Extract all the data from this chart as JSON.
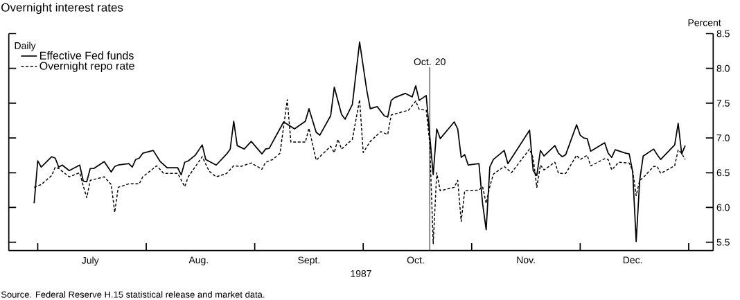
{
  "chart_data": {
    "type": "line",
    "title": "Overnight interest rates",
    "xlabel": "1987",
    "ylabel": "Percent",
    "legend_title": "Daily",
    "legend": "top left",
    "xlim": [
      "1987-06-23",
      "1988-01-08"
    ],
    "ylim": [
      5.38,
      8.5
    ],
    "xticks": [
      {
        "value": "1987-07-01",
        "label": null
      },
      {
        "value": "1987-07-16",
        "label": "July"
      },
      {
        "value": "1987-08-01",
        "label": null
      },
      {
        "value": "1987-08-16",
        "label": "Aug."
      },
      {
        "value": "1987-09-01",
        "label": null
      },
      {
        "value": "1987-09-16",
        "label": "Sept."
      },
      {
        "value": "1987-10-01",
        "label": null
      },
      {
        "value": "1987-10-16",
        "label": "Oct."
      },
      {
        "value": "1987-11-01",
        "label": null
      },
      {
        "value": "1987-11-16",
        "label": "Nov."
      },
      {
        "value": "1987-12-01",
        "label": null
      },
      {
        "value": "1987-12-16",
        "label": "Dec."
      },
      {
        "value": "1988-01-01",
        "label": null
      }
    ],
    "yticks": [
      {
        "value": 5.5,
        "label": "5.5"
      },
      {
        "value": 6,
        "label": "6.0"
      },
      {
        "value": 6.5,
        "label": "6.5"
      },
      {
        "value": 7,
        "label": "7.0"
      },
      {
        "value": 7.5,
        "label": "7.5"
      },
      {
        "value": 8,
        "label": "8.0"
      },
      {
        "value": 8.5,
        "label": "8.5"
      }
    ],
    "ref_lines": [
      {
        "axis": "x",
        "value": "1987-10-20",
        "label": "Oct. 20",
        "color": "#000000"
      }
    ],
    "annotations": [
      "Source. Federal Reserve H.15 statistical release and market data."
    ],
    "series": [
      {
        "name": "Effective Fed funds",
        "color": "#000000",
        "line_style": "solid",
        "x": [
          "1987-06-30",
          "1987-07-01",
          "1987-07-02",
          "1987-07-05",
          "1987-07-06",
          "1987-07-07",
          "1987-07-08",
          "1987-07-10",
          "1987-07-13",
          "1987-07-14",
          "1987-07-15",
          "1987-07-16",
          "1987-07-17",
          "1987-07-20",
          "1987-07-22",
          "1987-07-23",
          "1987-07-24",
          "1987-07-27",
          "1987-07-28",
          "1987-07-29",
          "1987-07-30",
          "1987-07-31",
          "1987-08-03",
          "1987-08-05",
          "1987-08-07",
          "1987-08-10",
          "1987-08-11",
          "1987-08-12",
          "1987-08-13",
          "1987-08-15",
          "1987-08-17",
          "1987-08-18",
          "1987-08-21",
          "1987-08-24",
          "1987-08-25",
          "1987-08-26",
          "1987-08-27",
          "1987-08-29",
          "1987-08-31",
          "1987-09-03",
          "1987-09-04",
          "1987-09-05",
          "1987-09-09",
          "1987-09-12",
          "1987-09-15",
          "1987-09-16",
          "1987-09-18",
          "1987-09-19",
          "1987-09-22",
          "1987-09-23",
          "1987-09-25",
          "1987-09-26",
          "1987-09-28",
          "1987-09-30",
          "1987-10-02",
          "1987-10-03",
          "1987-10-05",
          "1987-10-07",
          "1987-10-08",
          "1987-10-09",
          "1987-10-10",
          "1987-10-13",
          "1987-10-15",
          "1987-10-16",
          "1987-10-17",
          "1987-10-19",
          "1987-10-21",
          "1987-10-22",
          "1987-10-23",
          "1987-10-27",
          "1987-10-28",
          "1987-10-29",
          "1987-10-30",
          "1987-10-31",
          "1987-11-03",
          "1987-11-04",
          "1987-11-05",
          "1987-11-06",
          "1987-11-07",
          "1987-11-10",
          "1987-11-11",
          "1987-11-12",
          "1987-11-13",
          "1987-11-17",
          "1987-11-18",
          "1987-11-19",
          "1987-11-20",
          "1987-11-21",
          "1987-11-24",
          "1987-11-25",
          "1987-11-26",
          "1987-11-27",
          "1987-11-30",
          "1987-12-01",
          "1987-12-02",
          "1987-12-03",
          "1987-12-04",
          "1987-12-08",
          "1987-12-09",
          "1987-12-10",
          "1987-12-11",
          "1987-12-14",
          "1987-12-15",
          "1987-12-16",
          "1987-12-17",
          "1987-12-18",
          "1987-12-19",
          "1987-12-22",
          "1987-12-23",
          "1987-12-24",
          "1987-12-28",
          "1987-12-29",
          "1987-12-30",
          "1987-12-31"
        ],
        "values": [
          6.06,
          6.67,
          6.58,
          6.73,
          6.71,
          6.58,
          6.61,
          6.53,
          6.61,
          6.38,
          6.37,
          6.56,
          6.56,
          6.66,
          6.51,
          6.59,
          6.61,
          6.63,
          6.58,
          6.69,
          6.71,
          6.78,
          6.82,
          6.66,
          6.57,
          6.57,
          6.47,
          6.65,
          6.67,
          6.75,
          6.9,
          6.69,
          6.61,
          6.77,
          6.84,
          7.24,
          6.89,
          6.84,
          6.95,
          6.77,
          6.84,
          6.85,
          7.23,
          7.13,
          7.24,
          7.42,
          7.08,
          7.04,
          7.32,
          7.73,
          7.34,
          7.27,
          7.48,
          8.38,
          7.69,
          7.42,
          7.45,
          7.32,
          7.3,
          7.54,
          7.58,
          7.64,
          7.59,
          7.75,
          7.54,
          7.61,
          6.47,
          7.13,
          6.99,
          7.23,
          7.13,
          6.72,
          6.76,
          6.61,
          6.63,
          6.06,
          5.68,
          6.58,
          6.69,
          6.82,
          6.63,
          6.71,
          6.79,
          7.11,
          6.53,
          6.46,
          6.82,
          6.74,
          6.89,
          6.78,
          6.73,
          6.76,
          7.19,
          7.04,
          7.0,
          6.99,
          6.81,
          6.93,
          6.78,
          6.72,
          6.83,
          6.78,
          6.77,
          6.51,
          5.51,
          6.39,
          6.74,
          6.84,
          6.76,
          6.69,
          6.9,
          7.21,
          6.77,
          6.89
        ]
      },
      {
        "name": "Overnight repo rate",
        "color": "#000000",
        "line_style": "dashed",
        "x": [
          "1987-06-30",
          "1987-07-02",
          "1987-07-05",
          "1987-07-06",
          "1987-07-07",
          "1987-07-10",
          "1987-07-13",
          "1987-07-14",
          "1987-07-15",
          "1987-07-16",
          "1987-07-20",
          "1987-07-22",
          "1987-07-23",
          "1987-07-24",
          "1987-07-27",
          "1987-07-30",
          "1987-07-31",
          "1987-08-04",
          "1987-08-06",
          "1987-08-10",
          "1987-08-12",
          "1987-08-13",
          "1987-08-17",
          "1987-08-19",
          "1987-08-21",
          "1987-08-24",
          "1987-08-26",
          "1987-08-28",
          "1987-08-31",
          "1987-09-03",
          "1987-09-04",
          "1987-09-06",
          "1987-09-08",
          "1987-09-10",
          "1987-09-11",
          "1987-09-15",
          "1987-09-16",
          "1987-09-18",
          "1987-09-22",
          "1987-09-23",
          "1987-09-24",
          "1987-09-25",
          "1987-09-28",
          "1987-09-30",
          "1987-10-01",
          "1987-10-03",
          "1987-10-06",
          "1987-10-08",
          "1987-10-09",
          "1987-10-14",
          "1987-10-16",
          "1987-10-17",
          "1987-10-19",
          "1987-10-20",
          "1987-10-21",
          "1987-10-22",
          "1987-10-23",
          "1987-10-27",
          "1987-10-28",
          "1987-10-29",
          "1987-10-30",
          "1987-11-03",
          "1987-11-04",
          "1987-11-05",
          "1987-11-06",
          "1987-11-07",
          "1987-11-10",
          "1987-11-12",
          "1987-11-17",
          "1987-11-18",
          "1987-11-19",
          "1987-11-20",
          "1987-11-21",
          "1987-11-24",
          "1987-11-25",
          "1987-11-27",
          "1987-11-30",
          "1987-12-01",
          "1987-12-03",
          "1987-12-04",
          "1987-12-08",
          "1987-12-09",
          "1987-12-10",
          "1987-12-12",
          "1987-12-15",
          "1987-12-16",
          "1987-12-17",
          "1987-12-18",
          "1987-12-19",
          "1987-12-22",
          "1987-12-23",
          "1987-12-24",
          "1987-12-28",
          "1987-12-29",
          "1987-12-30",
          "1987-12-31"
        ],
        "values": [
          6.29,
          6.33,
          6.46,
          6.58,
          6.56,
          6.44,
          6.5,
          6.31,
          6.14,
          6.39,
          6.44,
          6.33,
          5.93,
          6.29,
          6.34,
          6.34,
          6.44,
          6.6,
          6.49,
          6.49,
          6.3,
          6.44,
          6.73,
          6.52,
          6.44,
          6.49,
          6.6,
          6.59,
          6.64,
          6.55,
          6.65,
          6.69,
          6.78,
          7.55,
          6.94,
          6.94,
          7.14,
          6.68,
          6.88,
          6.79,
          6.98,
          6.84,
          6.98,
          7.55,
          6.79,
          6.95,
          7.09,
          7.05,
          7.33,
          7.4,
          7.53,
          7.41,
          7.4,
          6.93,
          5.48,
          6.5,
          6.24,
          6.29,
          6.39,
          5.8,
          6.24,
          6.25,
          6.3,
          6.06,
          6.3,
          6.48,
          6.59,
          6.5,
          6.84,
          6.71,
          6.29,
          6.61,
          6.54,
          6.65,
          6.49,
          6.49,
          6.75,
          6.69,
          6.75,
          6.6,
          6.7,
          6.69,
          6.54,
          6.65,
          6.64,
          6.53,
          6.17,
          6.39,
          6.43,
          6.59,
          6.59,
          6.49,
          6.6,
          6.83,
          6.78,
          6.69
        ]
      }
    ]
  }
}
